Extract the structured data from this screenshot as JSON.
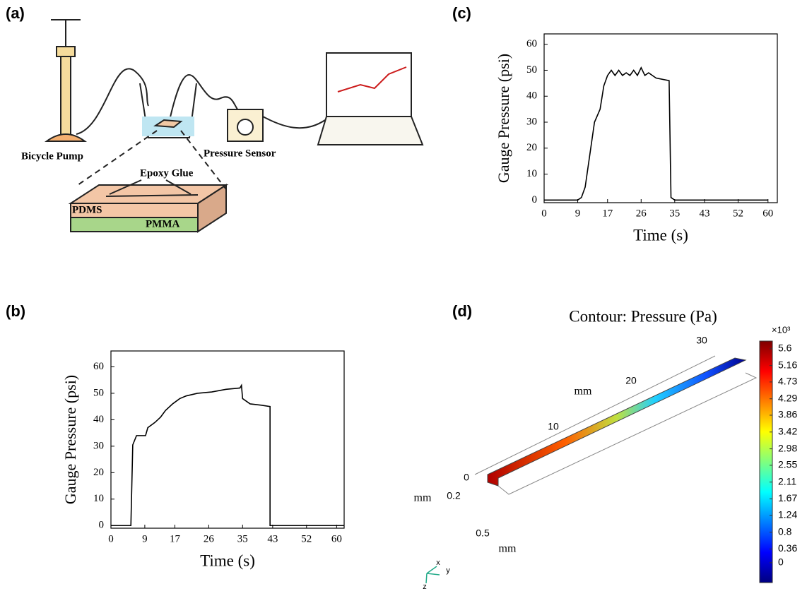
{
  "diagram": {
    "panel_label": "(a)",
    "labels": [
      "Bicycle Pump",
      "Pressure Sensor",
      "Epoxy Glue",
      "PDMS",
      "PMMA"
    ]
  },
  "chart_data": [
    {
      "type": "line",
      "panel_label": "(b)",
      "x_label": "Time (s)",
      "y_label": "Gauge Pressure (psi)",
      "xlim": [
        0,
        62
      ],
      "ylim": [
        -1,
        66
      ],
      "xticks": [
        0,
        9,
        17,
        26,
        35,
        43,
        52,
        60
      ],
      "yticks": [
        0,
        10,
        20,
        30,
        40,
        50,
        60
      ],
      "x": [
        0,
        4.2,
        5.3,
        5.8,
        6.8,
        9.2,
        9.8,
        11.7,
        13.2,
        14.5,
        16.4,
        18.3,
        20,
        23,
        26.8,
        30.6,
        34.3,
        34.7,
        35,
        37,
        40,
        42.3,
        42.3,
        62
      ],
      "series": [
        {
          "color": "#000000",
          "values": [
            0,
            0,
            0,
            30.5,
            34,
            34,
            37,
            39,
            41,
            43.5,
            46,
            48,
            49,
            50,
            50.5,
            51.5,
            52,
            53,
            48,
            46,
            45.5,
            45,
            0,
            0
          ]
        }
      ]
    },
    {
      "type": "line",
      "panel_label": "(c)",
      "x_label": "Time (s)",
      "y_label": "Gauge Pressure (psi)",
      "xlim": [
        0,
        62.5
      ],
      "ylim": [
        -1,
        64
      ],
      "xticks": [
        0,
        9,
        17,
        26,
        35,
        43,
        52,
        60
      ],
      "yticks": [
        0,
        10,
        20,
        30,
        40,
        50,
        60
      ],
      "x": [
        0,
        9,
        10,
        11,
        12.5,
        13.5,
        15,
        16,
        17,
        18,
        19,
        20,
        21,
        22,
        23,
        24,
        25,
        26,
        27,
        28,
        30,
        33.5,
        34,
        35,
        60
      ],
      "series": [
        {
          "color": "#000000",
          "values": [
            0,
            0,
            1,
            5,
            20,
            30,
            35,
            44,
            48,
            50,
            48,
            50,
            48,
            49,
            48,
            50,
            48,
            51,
            48,
            49,
            47,
            46,
            1,
            0,
            0
          ]
        }
      ]
    },
    {
      "type": "colorbar",
      "panel_label": "(d)",
      "title": "Contour: Pressure (Pa)",
      "scale_label": "×10³",
      "ylim": [
        -0.52,
        5.8
      ],
      "yticks": [
        0,
        0.36,
        0.8,
        1.24,
        1.67,
        2.11,
        2.55,
        2.98,
        3.42,
        3.86,
        4.29,
        4.73,
        5.16,
        5.6
      ],
      "colors": [
        "#00007f",
        "#0000ff",
        "#007fff",
        "#00ffff",
        "#7fff7f",
        "#ffff00",
        "#ff7f00",
        "#ff0000",
        "#7f0000"
      ],
      "axis_labels": [
        "0",
        "10",
        "20",
        "30",
        "mm",
        "mm",
        "0.2",
        "0.5",
        "mm",
        "x",
        "y",
        "z"
      ]
    }
  ]
}
